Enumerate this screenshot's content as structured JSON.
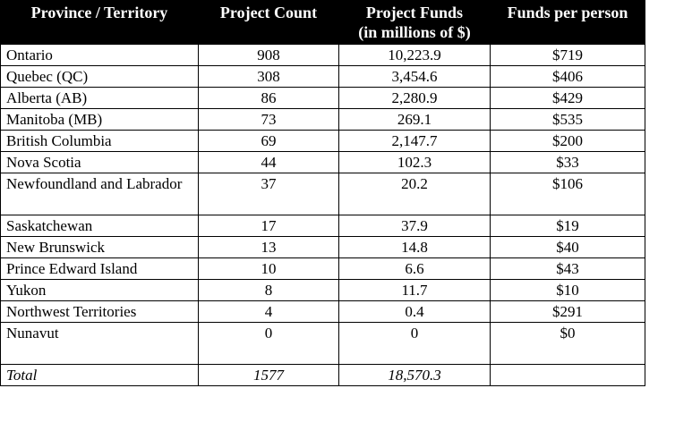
{
  "table": {
    "headers": [
      "Province / Territory",
      "Project Count",
      "Project Funds (in millions of $)",
      "Funds per person"
    ],
    "header_lines": {
      "project_funds_line1": "Project Funds",
      "project_funds_line2": "(in millions of $)"
    },
    "rows": [
      {
        "province": "Ontario",
        "count": "908",
        "funds": "10,223.9",
        "per_person": "$719"
      },
      {
        "province": "Quebec (QC)",
        "count": "308",
        "funds": "3,454.6",
        "per_person": "$406"
      },
      {
        "province": "Alberta (AB)",
        "count": "86",
        "funds": "2,280.9",
        "per_person": "$429"
      },
      {
        "province": "Manitoba (MB)",
        "count": "73",
        "funds": "269.1",
        "per_person": "$535"
      },
      {
        "province": "British Columbia",
        "count": "69",
        "funds": "2,147.7",
        "per_person": "$200"
      },
      {
        "province": "Nova Scotia",
        "count": "44",
        "funds": "102.3",
        "per_person": "$33"
      },
      {
        "province": "Newfoundland and Labrador",
        "count": "37",
        "funds": "20.2",
        "per_person": "$106"
      },
      {
        "province": "Saskatchewan",
        "count": "17",
        "funds": "37.9",
        "per_person": "$19"
      },
      {
        "province": "New Brunswick",
        "count": "13",
        "funds": "14.8",
        "per_person": "$40"
      },
      {
        "province": "Prince Edward Island",
        "count": "10",
        "funds": "6.6",
        "per_person": "$43"
      },
      {
        "province": "Yukon",
        "count": "8",
        "funds": "11.7",
        "per_person": "$10"
      },
      {
        "province": "Northwest Territories",
        "count": "4",
        "funds": "0.4",
        "per_person": "$291"
      },
      {
        "province": "Nunavut",
        "count": "0",
        "funds": "0",
        "per_person": "$0"
      }
    ],
    "total": {
      "label": "Total",
      "count": "1577",
      "funds": "18,570.3",
      "per_person": ""
    }
  }
}
